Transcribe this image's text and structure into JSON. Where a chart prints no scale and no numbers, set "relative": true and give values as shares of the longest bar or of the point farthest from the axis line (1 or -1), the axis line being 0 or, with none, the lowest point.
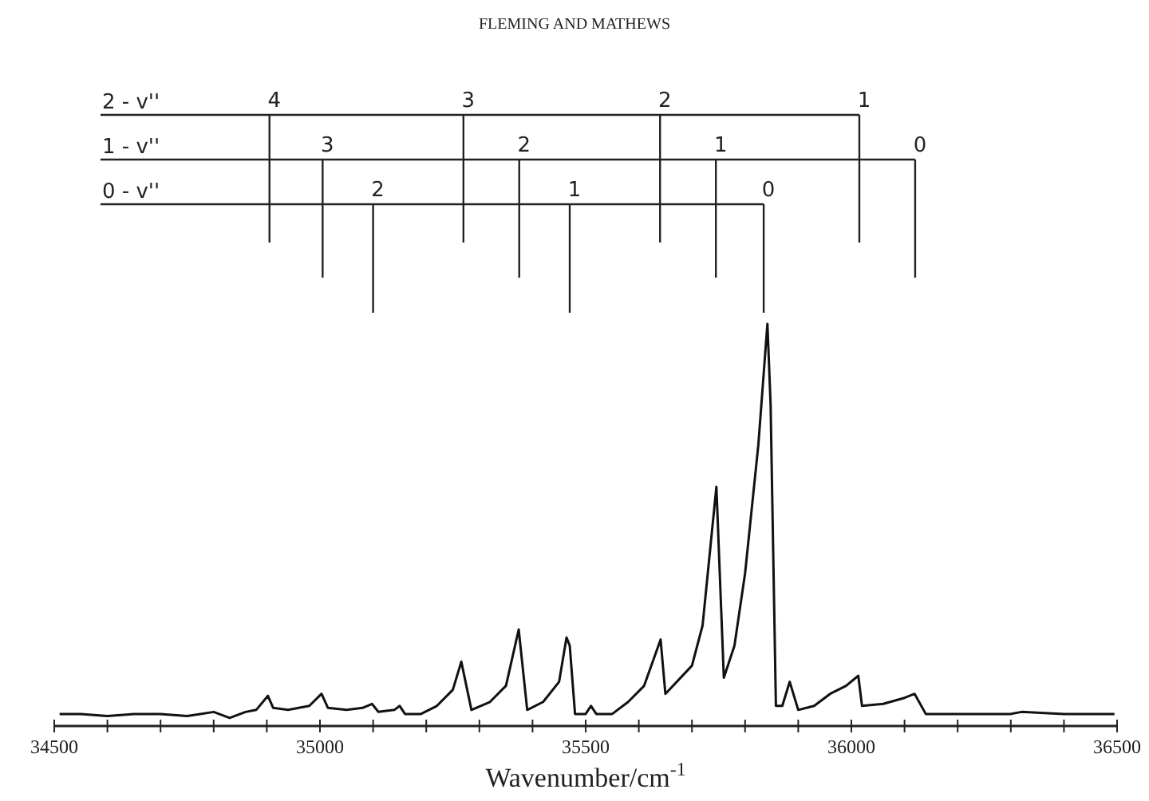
{
  "chart_data": {
    "type": "line",
    "title": "FLEMING AND MATHEWS",
    "xlabel": "Wavenumber/cm$^{-1}$",
    "relative": true,
    "grid": false,
    "marker": "none",
    "line_style": "solid",
    "xlim": [
      34500,
      36500
    ],
    "xticks": [
      {
        "value": 34500,
        "label": "34500"
      },
      {
        "value": 34600,
        "label": null
      },
      {
        "value": 34700,
        "label": null
      },
      {
        "value": 34800,
        "label": null
      },
      {
        "value": 34900,
        "label": null
      },
      {
        "value": 35000,
        "label": "35000"
      },
      {
        "value": 35100,
        "label": null
      },
      {
        "value": 35200,
        "label": null
      },
      {
        "value": 35300,
        "label": null
      },
      {
        "value": 35400,
        "label": null
      },
      {
        "value": 35500,
        "label": "35500"
      },
      {
        "value": 35600,
        "label": null
      },
      {
        "value": 35700,
        "label": null
      },
      {
        "value": 35800,
        "label": null
      },
      {
        "value": 35900,
        "label": null
      },
      {
        "value": 36000,
        "label": "36000"
      },
      {
        "value": 36100,
        "label": null
      },
      {
        "value": 36200,
        "label": null
      },
      {
        "value": 36300,
        "label": null
      },
      {
        "value": 36400,
        "label": null
      },
      {
        "value": 36500,
        "label": "36500"
      }
    ],
    "annotations": [
      "2 - v''",
      {
        "text": "4",
        "x": 34905
      },
      {
        "text": "3",
        "x": 35270
      },
      {
        "text": "2",
        "x": 35640
      },
      {
        "text": "1",
        "x": 36015
      },
      "1 - v''",
      {
        "text": "3",
        "x": 35005
      },
      {
        "text": "2",
        "x": 35375
      },
      {
        "text": "1",
        "x": 35745
      },
      {
        "text": "0",
        "x": 36120
      },
      "0 - v''",
      {
        "text": "2",
        "x": 35100
      },
      {
        "text": "1",
        "x": 35470
      },
      {
        "text": "0",
        "x": 35835
      }
    ],
    "series": [
      {
        "color": "#111111",
        "x": [
          34510,
          34550,
          34600,
          34650,
          34700,
          34750,
          34800,
          34830,
          34860,
          34880,
          34902,
          34912,
          34940,
          34980,
          35003,
          35015,
          35050,
          35080,
          35098,
          35110,
          35140,
          35150,
          35160,
          35190,
          35220,
          35250,
          35266,
          35285,
          35320,
          35350,
          35374,
          35390,
          35420,
          35450,
          35464,
          35470,
          35480,
          35500,
          35510,
          35520,
          35550,
          35580,
          35610,
          35641,
          35650,
          35700,
          35720,
          35746,
          35760,
          35780,
          35800,
          35825,
          35842,
          35848,
          35858,
          35870,
          35884,
          35900,
          35930,
          35960,
          35990,
          36013,
          36020,
          36060,
          36100,
          36119,
          36140,
          36200,
          36300,
          36320,
          36400,
          36495
        ],
        "values": [
          0.03,
          0.03,
          0.025,
          0.03,
          0.03,
          0.025,
          0.035,
          0.02,
          0.035,
          0.04,
          0.075,
          0.045,
          0.04,
          0.05,
          0.08,
          0.045,
          0.04,
          0.045,
          0.055,
          0.035,
          0.04,
          0.05,
          0.03,
          0.03,
          0.05,
          0.09,
          0.16,
          0.04,
          0.06,
          0.1,
          0.24,
          0.04,
          0.06,
          0.11,
          0.22,
          0.2,
          0.03,
          0.03,
          0.05,
          0.03,
          0.03,
          0.06,
          0.1,
          0.215,
          0.08,
          0.15,
          0.25,
          0.595,
          0.12,
          0.2,
          0.38,
          0.7,
          1.0,
          0.8,
          0.05,
          0.05,
          0.11,
          0.04,
          0.05,
          0.08,
          0.1,
          0.125,
          0.05,
          0.055,
          0.07,
          0.08,
          0.03,
          0.03,
          0.03,
          0.035,
          0.03,
          0.03
        ]
      }
    ]
  }
}
